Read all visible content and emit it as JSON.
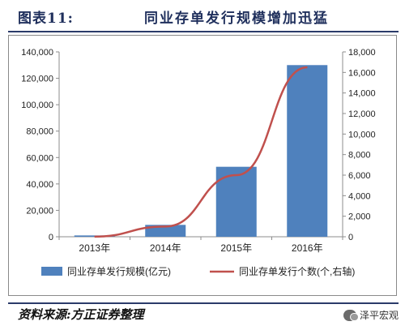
{
  "figure": {
    "label": "图表11:",
    "title": "同业存单发行规模增加迅猛",
    "source": "资料来源:方正证券整理",
    "watermark": "泽平宏观"
  },
  "chart_data": {
    "type": "bar",
    "categories": [
      "2013年",
      "2014年",
      "2015年",
      "2016年"
    ],
    "series": [
      {
        "name": "同业存单发行规模(亿元)",
        "type": "bar",
        "axis": "left",
        "color": "#4f81bd",
        "values": [
          1000,
          9000,
          53000,
          130000
        ]
      },
      {
        "name": "同业存单发行个数(个,右轴)",
        "type": "line",
        "axis": "right",
        "color": "#c0504d",
        "values": [
          10,
          1000,
          6000,
          16500
        ]
      }
    ],
    "left_axis": {
      "ylim": [
        0,
        140000
      ],
      "ticks": [
        "0",
        "20,000",
        "40,000",
        "60,000",
        "80,000",
        "100,000",
        "120,000",
        "140,000"
      ]
    },
    "right_axis": {
      "ylim": [
        0,
        18000
      ],
      "ticks": [
        "0",
        "2,000",
        "4,000",
        "6,000",
        "8,000",
        "10,000",
        "12,000",
        "14,000",
        "16,000",
        "18,000"
      ]
    },
    "grid": false,
    "legend_position": "bottom"
  }
}
